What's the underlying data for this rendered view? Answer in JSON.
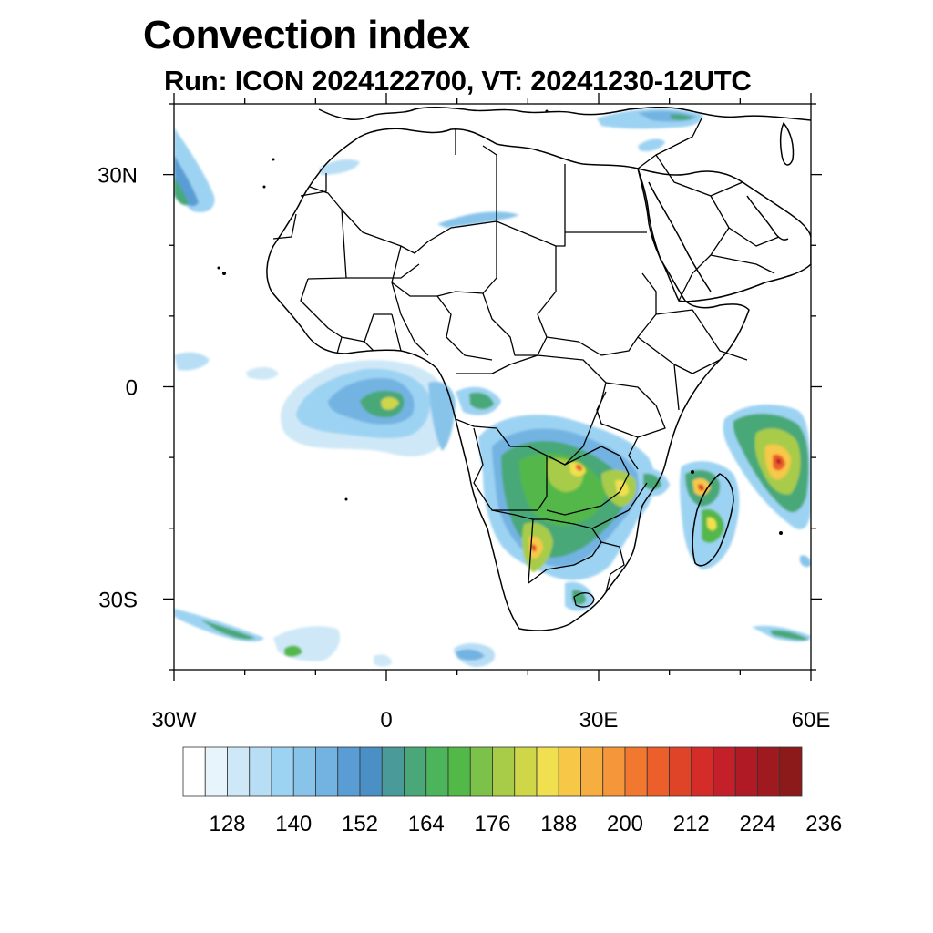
{
  "title": "Convection index",
  "subtitle": "Run: ICON 2024122700,  VT: 20241230-12UTC",
  "map": {
    "lon_range": [
      -30,
      60
    ],
    "lat_range": [
      -40,
      40
    ],
    "lat_ticks": [
      {
        "value": 30,
        "label": "30N"
      },
      {
        "value": 0,
        "label": "0"
      },
      {
        "value": -30,
        "label": "30S"
      }
    ],
    "lon_ticks": [
      {
        "value": -30,
        "label": "30W"
      },
      {
        "value": 0,
        "label": "0"
      },
      {
        "value": 30,
        "label": "30E"
      },
      {
        "value": 60,
        "label": "60E"
      }
    ],
    "minor_step_deg": 10
  },
  "colorbar": {
    "colors": [
      "#ffffff",
      "#e8f4fb",
      "#cfe8f7",
      "#b8def5",
      "#9dd3f2",
      "#88c4ea",
      "#73b3e2",
      "#5a9dd4",
      "#4a90c4",
      "#4a9a9a",
      "#4aa878",
      "#4cb45a",
      "#52b848",
      "#7cc24a",
      "#a8cc48",
      "#cfd648",
      "#f0e050",
      "#f7c848",
      "#f6ae40",
      "#f5963a",
      "#f27830",
      "#ec5e2a",
      "#e04428",
      "#d42c28",
      "#c4202a",
      "#b01a24",
      "#9e1a1e",
      "#8c1a1a"
    ],
    "labels": [
      "128",
      "140",
      "152",
      "164",
      "176",
      "188",
      "200",
      "212",
      "224",
      "236"
    ],
    "label_values": [
      128,
      140,
      152,
      164,
      176,
      188,
      200,
      212,
      224,
      236
    ]
  }
}
